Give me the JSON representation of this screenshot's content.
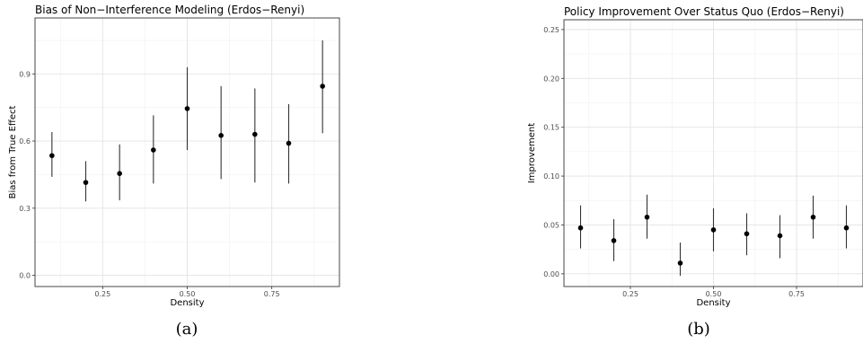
{
  "chart_data": [
    {
      "type": "scatter",
      "title": "Bias of Non−Interference Modeling (Erdos−Renyi)",
      "xlabel": "Density",
      "ylabel": "Bias from True Effect",
      "xlim": [
        0.05,
        0.95
      ],
      "ylim": [
        -0.05,
        1.15
      ],
      "xticks": [
        0.25,
        0.5,
        0.75
      ],
      "xtick_labels": [
        "0.25",
        "0.50",
        "0.75"
      ],
      "yticks": [
        0.0,
        0.3,
        0.6,
        0.9
      ],
      "ytick_labels": [
        "0.0",
        "0.3",
        "0.6",
        "0.9"
      ],
      "grid": true,
      "points": [
        {
          "x": 0.1,
          "y": 0.535,
          "low": 0.44,
          "high": 0.64
        },
        {
          "x": 0.2,
          "y": 0.415,
          "low": 0.33,
          "high": 0.51
        },
        {
          "x": 0.3,
          "y": 0.455,
          "low": 0.335,
          "high": 0.585
        },
        {
          "x": 0.4,
          "y": 0.56,
          "low": 0.41,
          "high": 0.715
        },
        {
          "x": 0.5,
          "y": 0.745,
          "low": 0.56,
          "high": 0.93
        },
        {
          "x": 0.6,
          "y": 0.625,
          "low": 0.43,
          "high": 0.845
        },
        {
          "x": 0.7,
          "y": 0.63,
          "low": 0.415,
          "high": 0.835
        },
        {
          "x": 0.8,
          "y": 0.59,
          "low": 0.41,
          "high": 0.765
        },
        {
          "x": 0.9,
          "y": 0.845,
          "low": 0.635,
          "high": 1.05
        }
      ]
    },
    {
      "type": "scatter",
      "title": "Policy Improvement Over Status Quo (Erdos−Renyi)",
      "xlabel": "Density",
      "ylabel": "Improvement",
      "xlim": [
        0.05,
        0.95
      ],
      "ylim": [
        -0.013,
        0.26
      ],
      "xticks": [
        0.25,
        0.5,
        0.75
      ],
      "xtick_labels": [
        "0.25",
        "0.50",
        "0.75"
      ],
      "yticks": [
        0.0,
        0.05,
        0.1,
        0.15,
        0.2,
        0.25
      ],
      "ytick_labels": [
        "0.00",
        "0.05",
        "0.10",
        "0.15",
        "0.20",
        "0.25"
      ],
      "grid": true,
      "points": [
        {
          "x": 0.1,
          "y": 0.047,
          "low": 0.026,
          "high": 0.07
        },
        {
          "x": 0.2,
          "y": 0.034,
          "low": 0.013,
          "high": 0.056
        },
        {
          "x": 0.3,
          "y": 0.058,
          "low": 0.036,
          "high": 0.081
        },
        {
          "x": 0.4,
          "y": 0.011,
          "low": -0.002,
          "high": 0.032
        },
        {
          "x": 0.5,
          "y": 0.045,
          "low": 0.023,
          "high": 0.067
        },
        {
          "x": 0.6,
          "y": 0.041,
          "low": 0.019,
          "high": 0.062
        },
        {
          "x": 0.7,
          "y": 0.039,
          "low": 0.016,
          "high": 0.06
        },
        {
          "x": 0.8,
          "y": 0.058,
          "low": 0.036,
          "high": 0.08
        },
        {
          "x": 0.9,
          "y": 0.047,
          "low": 0.026,
          "high": 0.07
        }
      ]
    }
  ],
  "captions": [
    "(a)",
    "(b)"
  ]
}
